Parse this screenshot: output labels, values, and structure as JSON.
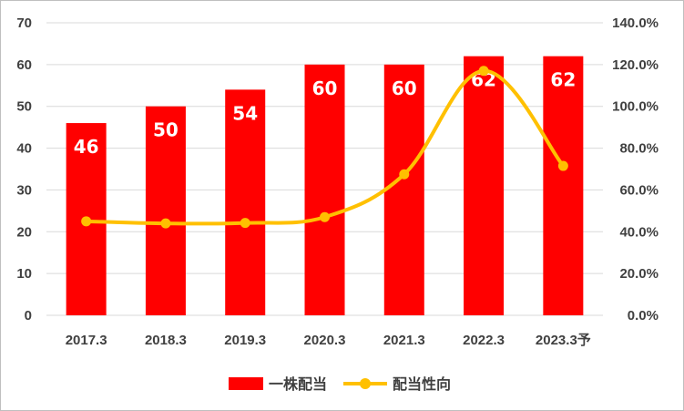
{
  "chart_data": {
    "type": "bar+line",
    "categories": [
      "2017.3",
      "2018.3",
      "2019.3",
      "2020.3",
      "2021.3",
      "2022.3",
      "2023.3予"
    ],
    "series": [
      {
        "name": "一株配当",
        "kind": "bar",
        "axis": "left",
        "color": "#ff0000",
        "values": [
          46,
          50,
          54,
          60,
          60,
          62,
          62
        ],
        "labels": [
          "46",
          "50",
          "54",
          "60",
          "60",
          "62",
          "62"
        ]
      },
      {
        "name": "配当性向",
        "kind": "line",
        "axis": "right",
        "color": "#ffc000",
        "values": [
          45.0,
          44.0,
          44.2,
          47.0,
          67.5,
          117.0,
          71.5
        ]
      }
    ],
    "left_axis": {
      "min": 0,
      "max": 70,
      "step": 10,
      "ticks": [
        "0",
        "10",
        "20",
        "30",
        "40",
        "50",
        "60",
        "70"
      ]
    },
    "right_axis": {
      "min": 0,
      "max": 140,
      "step": 20,
      "ticks": [
        "0.0%",
        "20.0%",
        "40.0%",
        "60.0%",
        "80.0%",
        "100.0%",
        "120.0%",
        "140.0%"
      ]
    },
    "gridlines": true,
    "legend_position": "bottom",
    "title": "",
    "xlabel": "",
    "ylabel": ""
  }
}
